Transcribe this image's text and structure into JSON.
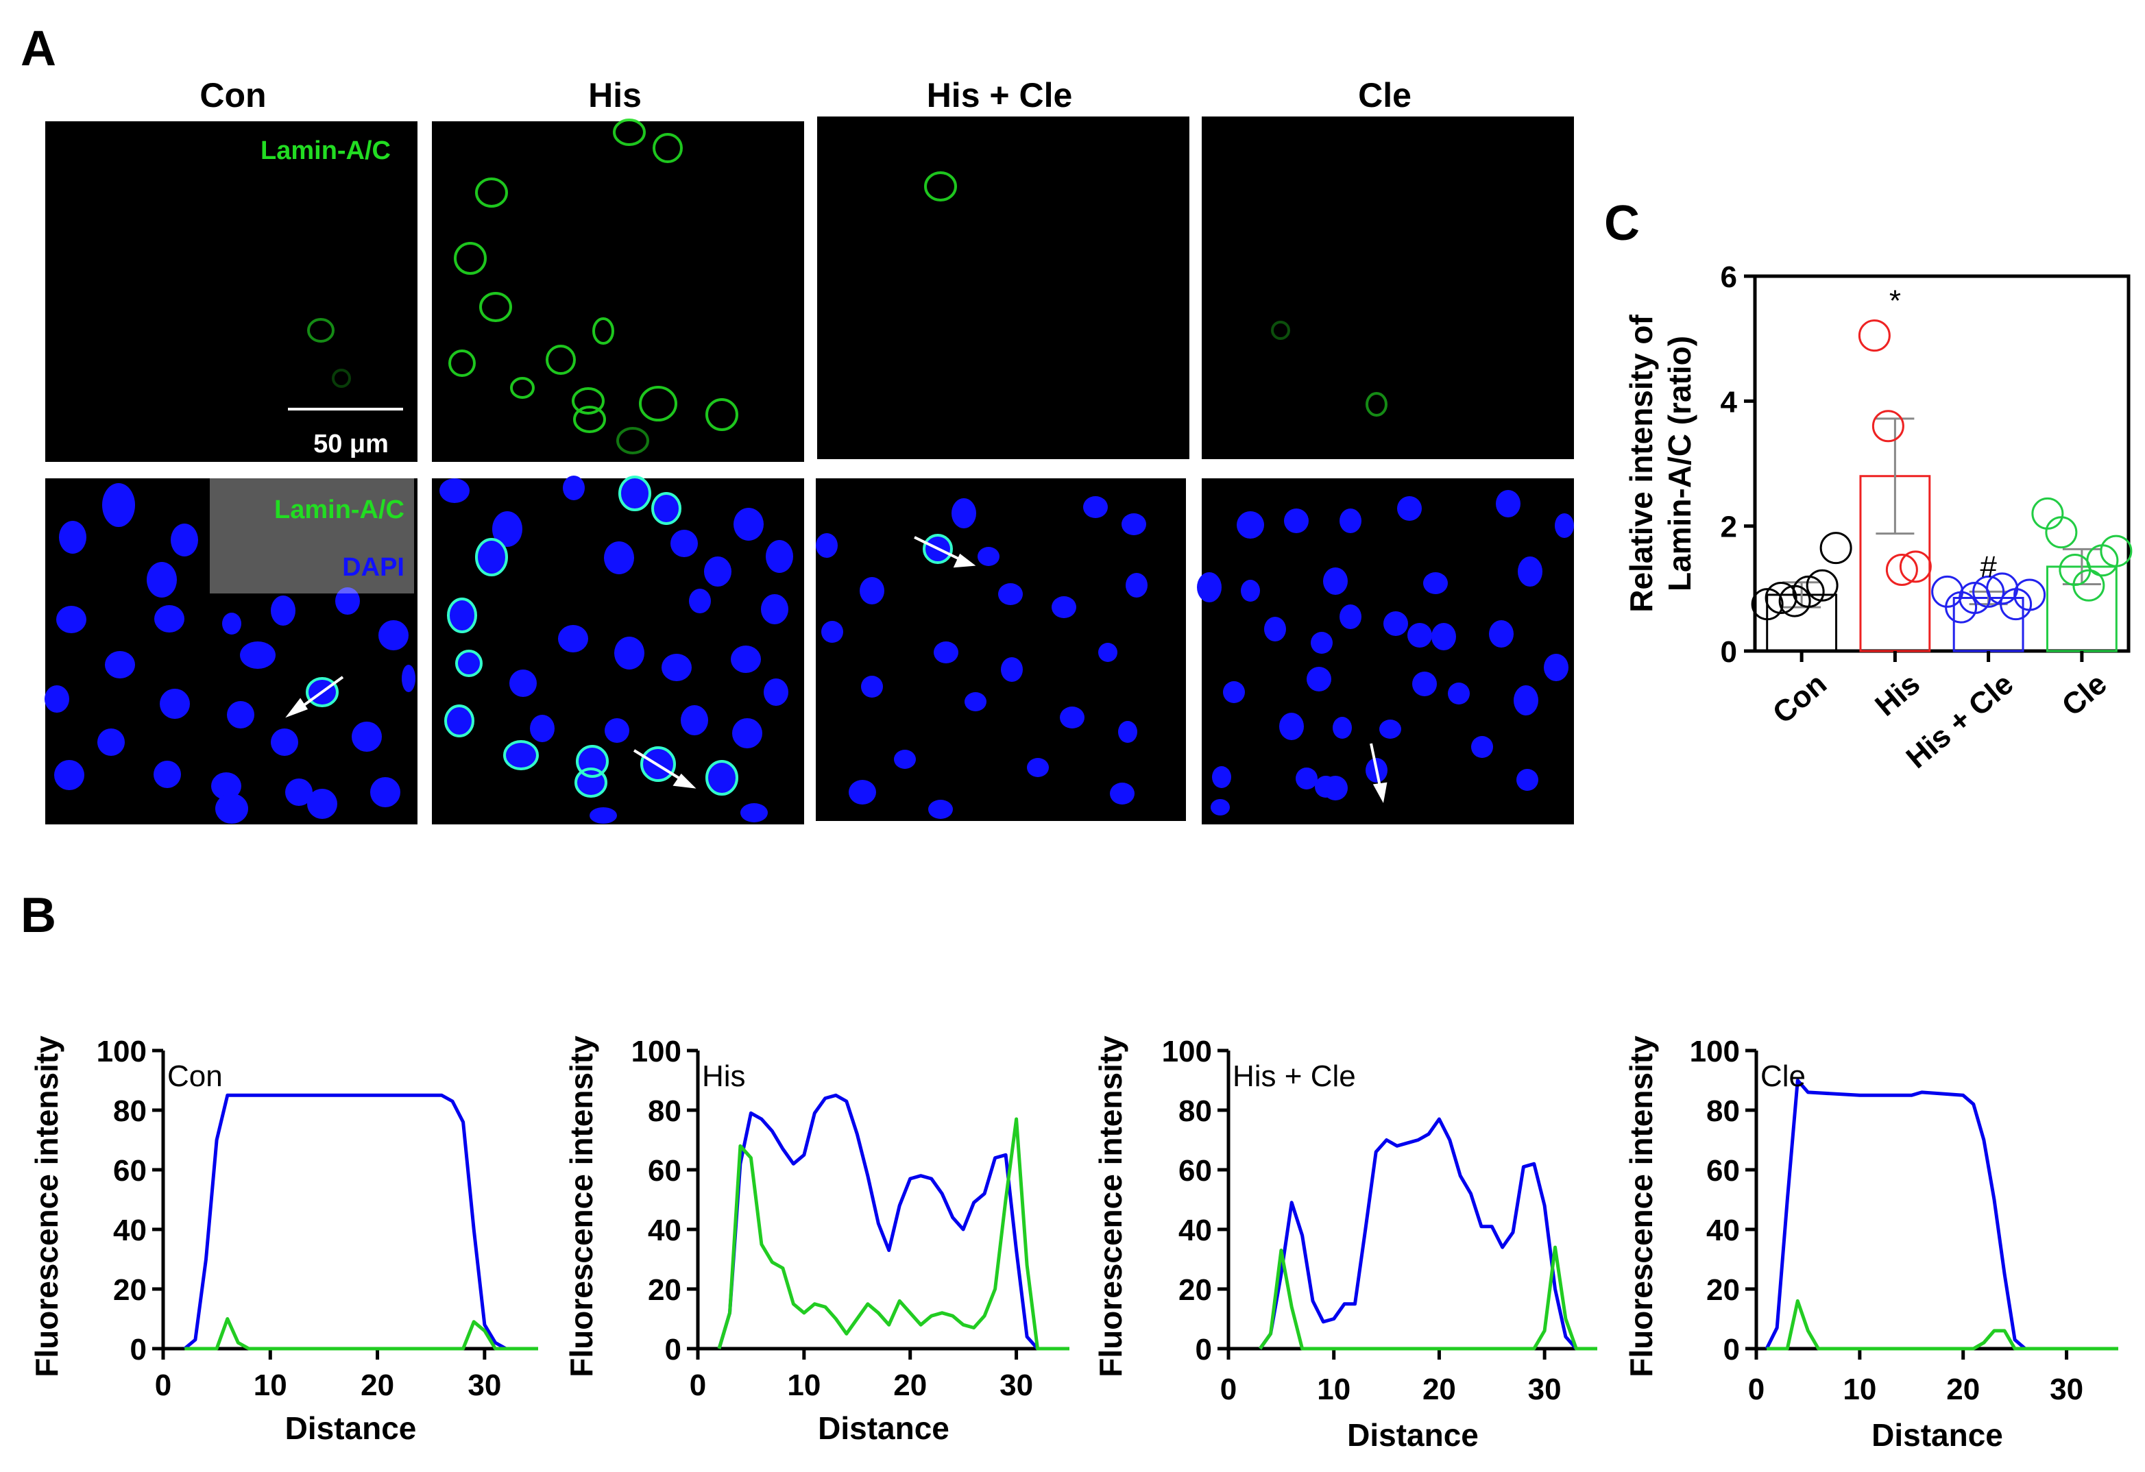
{
  "panel_letters": {
    "a": "A",
    "b": "B",
    "c": "C"
  },
  "microscopy": {
    "columns": [
      "Con",
      "His",
      "His + Cle",
      "Cle"
    ],
    "label_top": "Lamin-A/C",
    "label_merge_1": "Lamin-A/C",
    "label_merge_2": "DAPI",
    "scale_bar": "50 μm",
    "colors": {
      "green": "#22dd22",
      "blue": "#1010ff",
      "background": "#000000"
    }
  },
  "chart_data": [
    {
      "type": "bar",
      "panel": "C",
      "categories": [
        "Con",
        "His",
        "His + Cle",
        "Cle"
      ],
      "values": [
        0.9,
        2.8,
        0.85,
        1.35
      ],
      "errors": [
        0.2,
        0.92,
        0.1,
        0.28
      ],
      "points": [
        [
          0.75,
          0.85,
          0.8,
          0.95,
          1.05,
          1.65
        ],
        [
          5.05,
          3.6,
          1.3,
          1.35
        ],
        [
          0.95,
          0.7,
          0.85,
          0.95,
          1.0,
          0.75,
          0.9
        ],
        [
          2.2,
          1.9,
          1.3,
          1.05,
          1.45,
          1.6
        ]
      ],
      "annotations": [
        "",
        "*",
        "#",
        ""
      ],
      "colors": [
        "#000000",
        "#ee2222",
        "#2222ee",
        "#22cc44"
      ],
      "ylabel": "Relative intensity of Lamin-A/C (ratio)",
      "ylim": [
        0,
        6
      ],
      "yticks": [
        0,
        2,
        4,
        6
      ]
    },
    {
      "type": "line",
      "panel": "B",
      "title": "Con",
      "xlabel": "Distance",
      "ylabel": "Fluorescence intensity",
      "xlim": [
        0,
        35
      ],
      "ylim": [
        0,
        100
      ],
      "xticks": [
        0,
        10,
        20,
        30
      ],
      "yticks": [
        0,
        20,
        40,
        60,
        80,
        100
      ],
      "series": [
        {
          "color": "#0000ee",
          "points": [
            [
              2,
              0
            ],
            [
              3,
              3
            ],
            [
              4,
              30
            ],
            [
              5,
              70
            ],
            [
              6,
              85
            ],
            [
              10,
              85
            ],
            [
              20,
              85
            ],
            [
              26,
              85
            ],
            [
              27,
              83
            ],
            [
              28,
              76
            ],
            [
              29,
              40
            ],
            [
              30,
              8
            ],
            [
              31,
              2
            ],
            [
              32,
              0
            ],
            [
              35,
              0
            ]
          ]
        },
        {
          "color": "#22cc22",
          "points": [
            [
              2,
              0
            ],
            [
              5,
              0
            ],
            [
              6,
              10
            ],
            [
              7,
              2
            ],
            [
              8,
              0
            ],
            [
              28,
              0
            ],
            [
              29,
              9
            ],
            [
              30,
              6
            ],
            [
              31,
              0
            ],
            [
              35,
              0
            ]
          ]
        }
      ]
    },
    {
      "type": "line",
      "panel": "B",
      "title": "His",
      "xlabel": "Distance",
      "ylabel": "Fluorescence intensity",
      "xlim": [
        0,
        35
      ],
      "ylim": [
        0,
        100
      ],
      "xticks": [
        0,
        10,
        20,
        30
      ],
      "yticks": [
        0,
        20,
        40,
        60,
        80,
        100
      ],
      "series": [
        {
          "color": "#0000ee",
          "points": [
            [
              2,
              0
            ],
            [
              3,
              12
            ],
            [
              4,
              62
            ],
            [
              5,
              79
            ],
            [
              6,
              77
            ],
            [
              7,
              73
            ],
            [
              8,
              67
            ],
            [
              9,
              62
            ],
            [
              10,
              65
            ],
            [
              11,
              79
            ],
            [
              12,
              84
            ],
            [
              13,
              85
            ],
            [
              14,
              83
            ],
            [
              15,
              72
            ],
            [
              16,
              58
            ],
            [
              17,
              42
            ],
            [
              18,
              33
            ],
            [
              19,
              48
            ],
            [
              20,
              57
            ],
            [
              21,
              58
            ],
            [
              22,
              57
            ],
            [
              23,
              52
            ],
            [
              24,
              44
            ],
            [
              25,
              40
            ],
            [
              26,
              49
            ],
            [
              27,
              52
            ],
            [
              28,
              64
            ],
            [
              29,
              65
            ],
            [
              30,
              33
            ],
            [
              31,
              4
            ],
            [
              32,
              0
            ],
            [
              35,
              0
            ]
          ]
        },
        {
          "color": "#22cc22",
          "points": [
            [
              2,
              0
            ],
            [
              3,
              12
            ],
            [
              4,
              68
            ],
            [
              5,
              64
            ],
            [
              6,
              35
            ],
            [
              7,
              29
            ],
            [
              8,
              27
            ],
            [
              9,
              15
            ],
            [
              10,
              12
            ],
            [
              11,
              15
            ],
            [
              12,
              14
            ],
            [
              13,
              10
            ],
            [
              14,
              5
            ],
            [
              15,
              10
            ],
            [
              16,
              15
            ],
            [
              17,
              12
            ],
            [
              18,
              8
            ],
            [
              19,
              16
            ],
            [
              20,
              12
            ],
            [
              21,
              8
            ],
            [
              22,
              11
            ],
            [
              23,
              12
            ],
            [
              24,
              11
            ],
            [
              25,
              8
            ],
            [
              26,
              7
            ],
            [
              27,
              11
            ],
            [
              28,
              20
            ],
            [
              29,
              50
            ],
            [
              30,
              77
            ],
            [
              31,
              28
            ],
            [
              32,
              0
            ],
            [
              35,
              0
            ]
          ]
        }
      ]
    },
    {
      "type": "line",
      "panel": "B",
      "title": "His + Cle",
      "xlabel": "Distance",
      "ylabel": "Fluorescence intensity",
      "xlim": [
        0,
        35
      ],
      "ylim": [
        0,
        100
      ],
      "xticks": [
        0,
        10,
        20,
        30
      ],
      "yticks": [
        0,
        20,
        40,
        60,
        80,
        100
      ],
      "series": [
        {
          "color": "#0000ee",
          "points": [
            [
              3,
              0
            ],
            [
              4,
              5
            ],
            [
              5,
              25
            ],
            [
              6,
              49
            ],
            [
              7,
              38
            ],
            [
              8,
              16
            ],
            [
              9,
              9
            ],
            [
              10,
              10
            ],
            [
              11,
              15
            ],
            [
              12,
              15
            ],
            [
              13,
              40
            ],
            [
              14,
              66
            ],
            [
              15,
              70
            ],
            [
              16,
              68
            ],
            [
              17,
              69
            ],
            [
              18,
              70
            ],
            [
              19,
              72
            ],
            [
              20,
              77
            ],
            [
              21,
              70
            ],
            [
              22,
              58
            ],
            [
              23,
              52
            ],
            [
              24,
              41
            ],
            [
              25,
              41
            ],
            [
              26,
              34
            ],
            [
              27,
              39
            ],
            [
              28,
              61
            ],
            [
              29,
              62
            ],
            [
              30,
              48
            ],
            [
              31,
              20
            ],
            [
              32,
              4
            ],
            [
              33,
              0
            ],
            [
              35,
              0
            ]
          ]
        },
        {
          "color": "#22cc22",
          "points": [
            [
              3,
              0
            ],
            [
              4,
              5
            ],
            [
              5,
              33
            ],
            [
              6,
              14
            ],
            [
              7,
              0
            ],
            [
              29,
              0
            ],
            [
              30,
              6
            ],
            [
              31,
              34
            ],
            [
              32,
              10
            ],
            [
              33,
              0
            ],
            [
              35,
              0
            ]
          ]
        }
      ]
    },
    {
      "type": "line",
      "panel": "B",
      "title": "Cle",
      "xlabel": "Distance",
      "ylabel": "Fluorescence intensity",
      "xlim": [
        0,
        35
      ],
      "ylim": [
        0,
        100
      ],
      "xticks": [
        0,
        10,
        20,
        30
      ],
      "yticks": [
        0,
        20,
        40,
        60,
        80,
        100
      ],
      "series": [
        {
          "color": "#0000ee",
          "points": [
            [
              1,
              0
            ],
            [
              2,
              7
            ],
            [
              3,
              50
            ],
            [
              4,
              90
            ],
            [
              5,
              86
            ],
            [
              10,
              85
            ],
            [
              15,
              85
            ],
            [
              16,
              86
            ],
            [
              20,
              85
            ],
            [
              21,
              82
            ],
            [
              22,
              70
            ],
            [
              23,
              50
            ],
            [
              24,
              25
            ],
            [
              25,
              3
            ],
            [
              26,
              0
            ],
            [
              35,
              0
            ]
          ]
        },
        {
          "color": "#22cc22",
          "points": [
            [
              1,
              0
            ],
            [
              3,
              0
            ],
            [
              4,
              16
            ],
            [
              5,
              6
            ],
            [
              6,
              0
            ],
            [
              21,
              0
            ],
            [
              22,
              2
            ],
            [
              23,
              6
            ],
            [
              24,
              6
            ],
            [
              25,
              0
            ],
            [
              35,
              0
            ]
          ]
        }
      ]
    }
  ]
}
